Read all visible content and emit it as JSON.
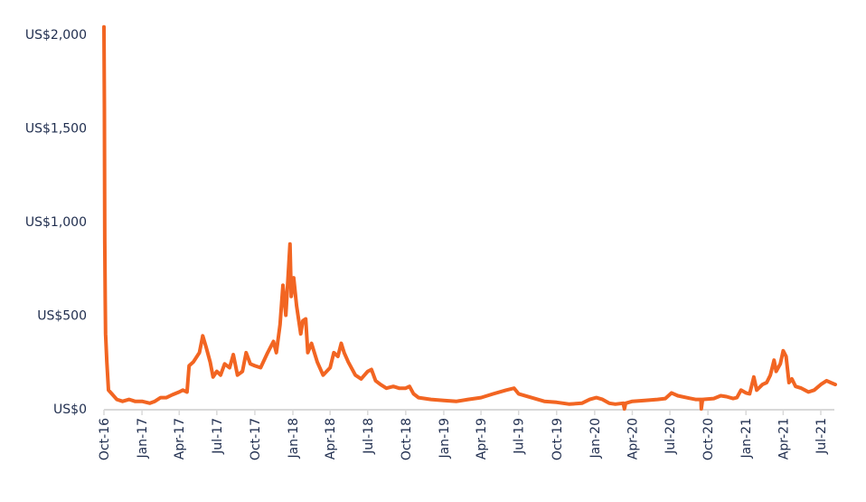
{
  "chart_data": {
    "type": "line",
    "title": "",
    "xlabel": "",
    "ylabel": "",
    "ylim": [
      0,
      2000
    ],
    "yticks": [
      0,
      500,
      1000,
      1500,
      2000
    ],
    "ytick_labels": [
      "US$0",
      "US$500",
      "US$1,000",
      "US$1,500",
      "US$2,000"
    ],
    "xticks": [
      "2016-10-01",
      "2017-01-01",
      "2017-04-01",
      "2017-07-01",
      "2017-10-01",
      "2018-01-01",
      "2018-04-01",
      "2018-07-01",
      "2018-10-01",
      "2019-01-01",
      "2019-04-01",
      "2019-07-01",
      "2019-10-01",
      "2020-01-01",
      "2020-04-01",
      "2020-07-01",
      "2020-10-01",
      "2021-01-01",
      "2021-04-01",
      "2021-07-01"
    ],
    "xtick_labels": [
      "Oct-16",
      "Jan-17",
      "Apr-17",
      "Jul-17",
      "Oct-17",
      "Jan-18",
      "Apr-18",
      "Jul-18",
      "Oct-18",
      "Jan-19",
      "Apr-19",
      "Jul-19",
      "Oct-19",
      "Jan-20",
      "Apr-20",
      "Jul-20",
      "Oct-20",
      "Jan-21",
      "Apr-21",
      "Jul-21"
    ],
    "grid": false,
    "colors": {
      "line": "#f26522",
      "text": "#1f2d4e",
      "axis": "#d9d9d9"
    },
    "series": [
      {
        "points": [
          [
            "2016-10-01",
            2040
          ],
          [
            "2016-10-02",
            1600
          ],
          [
            "2016-10-03",
            900
          ],
          [
            "2016-10-04",
            580
          ],
          [
            "2016-10-05",
            400
          ],
          [
            "2016-10-08",
            250
          ],
          [
            "2016-10-12",
            100
          ],
          [
            "2016-10-20",
            80
          ],
          [
            "2016-11-01",
            50
          ],
          [
            "2016-11-15",
            40
          ],
          [
            "2016-12-01",
            50
          ],
          [
            "2016-12-15",
            40
          ],
          [
            "2017-01-01",
            40
          ],
          [
            "2017-01-20",
            30
          ],
          [
            "2017-02-01",
            40
          ],
          [
            "2017-02-15",
            60
          ],
          [
            "2017-03-01",
            60
          ],
          [
            "2017-03-15",
            75
          ],
          [
            "2017-04-01",
            90
          ],
          [
            "2017-04-10",
            100
          ],
          [
            "2017-04-20",
            90
          ],
          [
            "2017-04-25",
            230
          ],
          [
            "2017-05-05",
            250
          ],
          [
            "2017-05-20",
            300
          ],
          [
            "2017-05-28",
            390
          ],
          [
            "2017-06-05",
            330
          ],
          [
            "2017-06-15",
            250
          ],
          [
            "2017-06-22",
            170
          ],
          [
            "2017-07-01",
            200
          ],
          [
            "2017-07-10",
            180
          ],
          [
            "2017-07-20",
            240
          ],
          [
            "2017-08-01",
            220
          ],
          [
            "2017-08-10",
            290
          ],
          [
            "2017-08-20",
            180
          ],
          [
            "2017-09-01",
            200
          ],
          [
            "2017-09-10",
            300
          ],
          [
            "2017-09-20",
            240
          ],
          [
            "2017-10-01",
            230
          ],
          [
            "2017-10-15",
            220
          ],
          [
            "2017-11-01",
            300
          ],
          [
            "2017-11-15",
            360
          ],
          [
            "2017-11-22",
            300
          ],
          [
            "2017-12-01",
            450
          ],
          [
            "2017-12-08",
            660
          ],
          [
            "2017-12-15",
            500
          ],
          [
            "2017-12-25",
            880
          ],
          [
            "2017-12-28",
            600
          ],
          [
            "2018-01-03",
            700
          ],
          [
            "2018-01-10",
            550
          ],
          [
            "2018-01-20",
            400
          ],
          [
            "2018-01-25",
            470
          ],
          [
            "2018-02-01",
            480
          ],
          [
            "2018-02-06",
            300
          ],
          [
            "2018-02-15",
            350
          ],
          [
            "2018-03-01",
            250
          ],
          [
            "2018-03-15",
            180
          ],
          [
            "2018-04-01",
            220
          ],
          [
            "2018-04-10",
            300
          ],
          [
            "2018-04-20",
            280
          ],
          [
            "2018-04-28",
            350
          ],
          [
            "2018-05-05",
            300
          ],
          [
            "2018-05-15",
            250
          ],
          [
            "2018-06-01",
            180
          ],
          [
            "2018-06-15",
            160
          ],
          [
            "2018-07-01",
            200
          ],
          [
            "2018-07-10",
            210
          ],
          [
            "2018-07-20",
            150
          ],
          [
            "2018-08-01",
            130
          ],
          [
            "2018-08-15",
            110
          ],
          [
            "2018-09-01",
            120
          ],
          [
            "2018-09-15",
            110
          ],
          [
            "2018-10-01",
            110
          ],
          [
            "2018-10-10",
            120
          ],
          [
            "2018-10-20",
            80
          ],
          [
            "2018-11-01",
            60
          ],
          [
            "2018-12-01",
            50
          ],
          [
            "2019-01-01",
            45
          ],
          [
            "2019-02-01",
            40
          ],
          [
            "2019-03-01",
            50
          ],
          [
            "2019-04-01",
            60
          ],
          [
            "2019-05-01",
            80
          ],
          [
            "2019-06-01",
            100
          ],
          [
            "2019-06-20",
            110
          ],
          [
            "2019-07-01",
            80
          ],
          [
            "2019-08-01",
            60
          ],
          [
            "2019-09-01",
            40
          ],
          [
            "2019-10-01",
            35
          ],
          [
            "2019-11-01",
            25
          ],
          [
            "2019-12-01",
            30
          ],
          [
            "2019-12-20",
            50
          ],
          [
            "2020-01-05",
            60
          ],
          [
            "2020-01-20",
            50
          ],
          [
            "2020-02-05",
            30
          ],
          [
            "2020-02-20",
            25
          ],
          [
            "2020-03-10",
            30
          ],
          [
            "2020-03-13",
            0
          ],
          [
            "2020-03-16",
            30
          ],
          [
            "2020-04-01",
            40
          ],
          [
            "2020-05-01",
            45
          ],
          [
            "2020-06-01",
            50
          ],
          [
            "2020-06-20",
            55
          ],
          [
            "2020-07-05",
            85
          ],
          [
            "2020-07-20",
            70
          ],
          [
            "2020-08-10",
            60
          ],
          [
            "2020-09-01",
            50
          ],
          [
            "2020-09-14",
            50
          ],
          [
            "2020-09-15",
            0
          ],
          [
            "2020-09-18",
            50
          ],
          [
            "2020-10-15",
            55
          ],
          [
            "2020-11-01",
            70
          ],
          [
            "2020-11-15",
            65
          ],
          [
            "2020-12-01",
            55
          ],
          [
            "2020-12-10",
            60
          ],
          [
            "2020-12-20",
            100
          ],
          [
            "2021-01-01",
            85
          ],
          [
            "2021-01-10",
            80
          ],
          [
            "2021-01-20",
            170
          ],
          [
            "2021-01-27",
            100
          ],
          [
            "2021-02-10",
            130
          ],
          [
            "2021-02-20",
            140
          ],
          [
            "2021-03-01",
            180
          ],
          [
            "2021-03-10",
            260
          ],
          [
            "2021-03-15",
            200
          ],
          [
            "2021-03-25",
            240
          ],
          [
            "2021-04-01",
            310
          ],
          [
            "2021-04-08",
            280
          ],
          [
            "2021-04-15",
            140
          ],
          [
            "2021-04-22",
            160
          ],
          [
            "2021-05-01",
            120
          ],
          [
            "2021-05-15",
            110
          ],
          [
            "2021-06-01",
            90
          ],
          [
            "2021-06-15",
            100
          ],
          [
            "2021-07-01",
            130
          ],
          [
            "2021-07-15",
            150
          ],
          [
            "2021-07-25",
            140
          ],
          [
            "2021-08-05",
            130
          ]
        ]
      }
    ]
  }
}
